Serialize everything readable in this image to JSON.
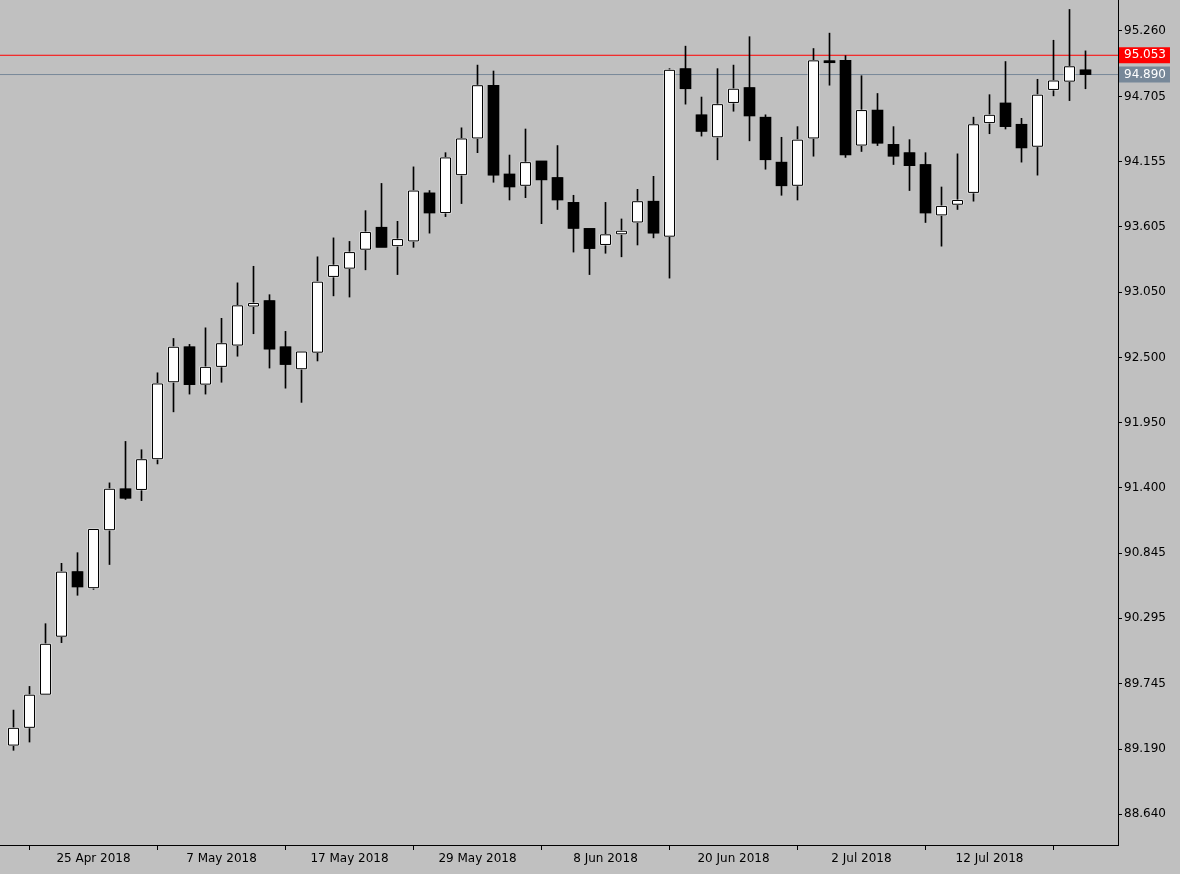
{
  "chart_data": {
    "type": "candlestick",
    "categories": [
      null,
      null,
      null,
      null,
      null,
      "25 Apr 2018",
      null,
      null,
      null,
      null,
      null,
      null,
      null,
      "7 May 2018",
      null,
      null,
      null,
      null,
      null,
      null,
      null,
      "17 May 2018",
      null,
      null,
      null,
      null,
      null,
      null,
      null,
      "29 May 2018",
      null,
      null,
      null,
      null,
      null,
      null,
      null,
      "8 Jun 2018",
      null,
      null,
      null,
      null,
      null,
      null,
      null,
      "20 Jun 2018",
      null,
      null,
      null,
      null,
      null,
      null,
      null,
      "2 Jul 2018",
      null,
      null,
      null,
      null,
      null,
      null,
      null,
      "12 Jul 2018",
      null,
      null,
      null,
      null,
      null,
      null
    ],
    "ohlc": [
      [
        89.22,
        89.52,
        89.18,
        89.37
      ],
      [
        89.37,
        89.72,
        89.25,
        89.65
      ],
      [
        89.65,
        90.25,
        89.65,
        90.08
      ],
      [
        90.14,
        90.76,
        90.09,
        90.69
      ],
      [
        90.69,
        90.85,
        90.49,
        90.56
      ],
      [
        90.55,
        91.05,
        90.54,
        91.05
      ],
      [
        91.04,
        91.44,
        90.75,
        91.39
      ],
      [
        91.39,
        91.79,
        91.3,
        91.31
      ],
      [
        91.38,
        91.72,
        91.29,
        91.64
      ],
      [
        91.64,
        92.37,
        91.6,
        92.28
      ],
      [
        92.29,
        92.66,
        92.04,
        92.59
      ],
      [
        92.59,
        92.61,
        92.19,
        92.27
      ],
      [
        92.27,
        92.75,
        92.19,
        92.42
      ],
      [
        92.42,
        92.83,
        92.29,
        92.62
      ],
      [
        92.6,
        93.13,
        92.51,
        92.94
      ],
      [
        92.93,
        93.27,
        92.7,
        92.96
      ],
      [
        92.98,
        93.03,
        92.41,
        92.57
      ],
      [
        92.59,
        92.72,
        92.24,
        92.44
      ],
      [
        92.4,
        92.55,
        92.12,
        92.55
      ],
      [
        92.54,
        93.35,
        92.47,
        93.14
      ],
      [
        93.18,
        93.51,
        93.02,
        93.28
      ],
      [
        93.25,
        93.48,
        93.01,
        93.39
      ],
      [
        93.41,
        93.74,
        93.24,
        93.56
      ],
      [
        93.6,
        93.97,
        93.43,
        93.43
      ],
      [
        93.44,
        93.65,
        93.2,
        93.5
      ],
      [
        93.48,
        94.11,
        93.43,
        93.91
      ],
      [
        93.89,
        93.91,
        93.55,
        93.72
      ],
      [
        93.72,
        94.23,
        93.69,
        94.19
      ],
      [
        94.04,
        94.44,
        93.8,
        94.35
      ],
      [
        94.35,
        94.97,
        94.23,
        94.8
      ],
      [
        94.8,
        94.92,
        93.98,
        94.04
      ],
      [
        94.05,
        94.21,
        93.83,
        93.94
      ],
      [
        93.95,
        94.43,
        93.85,
        94.15
      ],
      [
        94.16,
        94.16,
        93.63,
        94.0
      ],
      [
        94.02,
        94.29,
        93.75,
        93.83
      ],
      [
        93.81,
        93.87,
        93.39,
        93.59
      ],
      [
        93.59,
        93.59,
        93.2,
        93.42
      ],
      [
        93.45,
        93.81,
        93.38,
        93.54
      ],
      [
        93.54,
        93.67,
        93.35,
        93.57
      ],
      [
        93.64,
        93.92,
        93.45,
        93.82
      ],
      [
        93.82,
        94.03,
        93.51,
        93.55
      ],
      [
        93.52,
        94.94,
        93.17,
        94.93
      ],
      [
        94.94,
        95.13,
        94.64,
        94.77
      ],
      [
        94.55,
        94.7,
        94.37,
        94.41
      ],
      [
        94.36,
        94.94,
        94.17,
        94.64
      ],
      [
        94.65,
        94.97,
        94.58,
        94.77
      ],
      [
        94.78,
        95.21,
        94.33,
        94.54
      ],
      [
        94.53,
        94.55,
        94.09,
        94.17
      ],
      [
        94.15,
        94.36,
        93.87,
        93.95
      ],
      [
        93.95,
        94.45,
        93.83,
        94.34
      ],
      [
        94.35,
        95.11,
        94.2,
        95.01
      ],
      [
        94.99,
        95.24,
        94.8,
        94.99
      ],
      [
        95.01,
        95.05,
        94.19,
        94.21
      ],
      [
        94.29,
        94.88,
        94.24,
        94.59
      ],
      [
        94.59,
        94.73,
        94.29,
        94.31
      ],
      [
        94.3,
        94.45,
        94.13,
        94.2
      ],
      [
        94.23,
        94.34,
        93.91,
        94.12
      ],
      [
        94.13,
        94.23,
        93.64,
        93.72
      ],
      [
        93.7,
        93.94,
        93.44,
        93.78
      ],
      [
        93.79,
        94.22,
        93.75,
        93.83
      ],
      [
        93.89,
        94.53,
        93.82,
        94.47
      ],
      [
        94.48,
        94.72,
        94.39,
        94.55
      ],
      [
        94.65,
        95.0,
        94.43,
        94.45
      ],
      [
        94.47,
        94.52,
        94.15,
        94.27
      ],
      [
        94.28,
        94.85,
        94.04,
        94.72
      ],
      [
        94.76,
        95.18,
        94.71,
        94.84
      ],
      [
        94.83,
        95.44,
        94.67,
        94.96
      ],
      [
        94.93,
        95.09,
        94.77,
        94.89
      ]
    ],
    "ylim": [
      88.38,
      95.52
    ],
    "yticks": [
      {
        "value": 88.64,
        "label": "88.640"
      },
      {
        "value": 89.19,
        "label": "89.190"
      },
      {
        "value": 89.745,
        "label": "89.745"
      },
      {
        "value": 90.295,
        "label": "90.295"
      },
      {
        "value": 90.845,
        "label": "90.845"
      },
      {
        "value": 91.4,
        "label": "91.400"
      },
      {
        "value": 91.95,
        "label": "91.950"
      },
      {
        "value": 92.5,
        "label": "92.500"
      },
      {
        "value": 93.05,
        "label": "93.050"
      },
      {
        "value": 93.605,
        "label": "93.605"
      },
      {
        "value": 94.155,
        "label": "94.155"
      },
      {
        "value": 94.705,
        "label": "94.705"
      },
      {
        "value": 95.26,
        "label": "95.260"
      }
    ],
    "ref_lines": [
      {
        "axis": "y",
        "value": 95.053,
        "label": "95.053",
        "color": "#ff0000"
      },
      {
        "axis": "y",
        "value": 94.89,
        "label": "94.890",
        "color": "#778899"
      }
    ]
  }
}
